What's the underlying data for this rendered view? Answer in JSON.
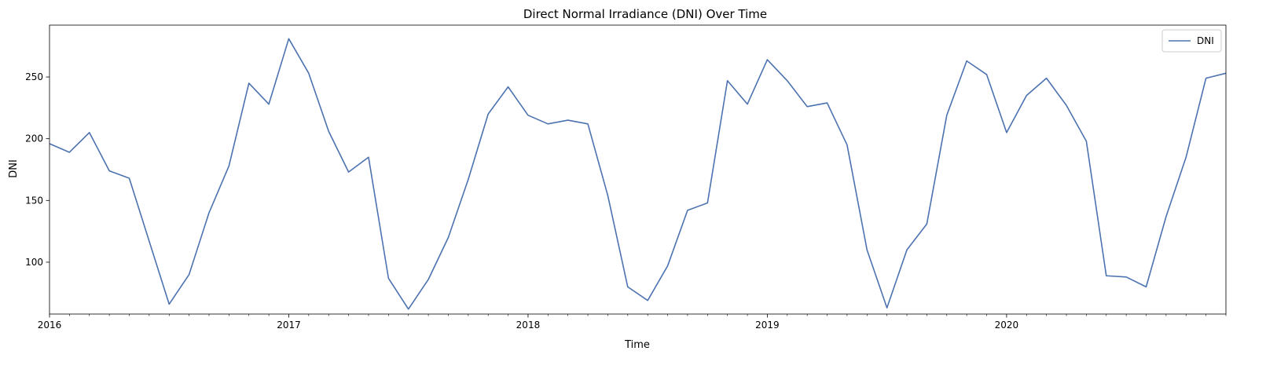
{
  "chart_data": {
    "type": "line",
    "title": "Direct Normal Irradiance (DNI) Over Time",
    "xlabel": "Time",
    "ylabel": "DNI",
    "xlim": [
      "2016-01",
      "2020-12"
    ],
    "ylim": [
      58,
      292
    ],
    "yticks": [
      100,
      150,
      200,
      250
    ],
    "xticks": [
      "2016",
      "2017",
      "2018",
      "2019",
      "2020"
    ],
    "grid": false,
    "legend_position": "upper right",
    "series": [
      {
        "name": "DNI",
        "color": "#4c72b0",
        "x": [
          "2016-01",
          "2016-02",
          "2016-03",
          "2016-04",
          "2016-05",
          "2016-06",
          "2016-07",
          "2016-08",
          "2016-09",
          "2016-10",
          "2016-11",
          "2016-12",
          "2017-01",
          "2017-02",
          "2017-03",
          "2017-04",
          "2017-05",
          "2017-06",
          "2017-07",
          "2017-08",
          "2017-09",
          "2017-10",
          "2017-11",
          "2017-12",
          "2018-01",
          "2018-02",
          "2018-03",
          "2018-04",
          "2018-05",
          "2018-06",
          "2018-07",
          "2018-08",
          "2018-09",
          "2018-10",
          "2018-11",
          "2018-12",
          "2019-01",
          "2019-02",
          "2019-03",
          "2019-04",
          "2019-05",
          "2019-06",
          "2019-07",
          "2019-08",
          "2019-09",
          "2019-10",
          "2019-11",
          "2019-12",
          "2020-01",
          "2020-02",
          "2020-03",
          "2020-04",
          "2020-05",
          "2020-06",
          "2020-07",
          "2020-08",
          "2020-09",
          "2020-10",
          "2020-11",
          "2020-12"
        ],
        "values": [
          196,
          189,
          205,
          174,
          168,
          117,
          66,
          90,
          140,
          178,
          245,
          228,
          281,
          253,
          206,
          173,
          185,
          87,
          62,
          86,
          120,
          167,
          220,
          242,
          219,
          212,
          215,
          212,
          154,
          80,
          69,
          97,
          142,
          148,
          247,
          228,
          264,
          247,
          226,
          229,
          195,
          110,
          63,
          110,
          131,
          219,
          263,
          252,
          205,
          235,
          249,
          227,
          198,
          89,
          88,
          80,
          137,
          185,
          249,
          253
        ]
      }
    ]
  }
}
